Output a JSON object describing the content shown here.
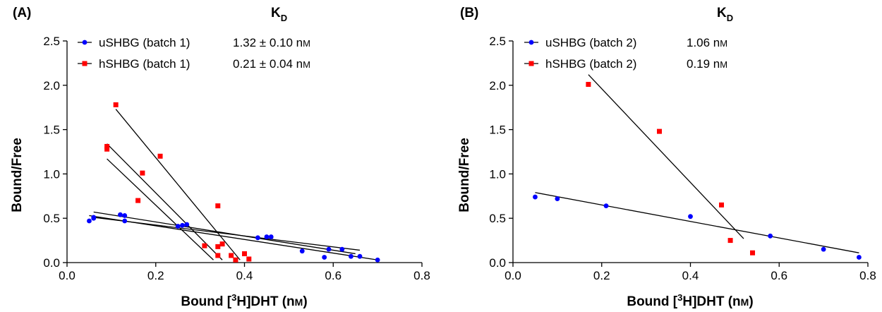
{
  "chart_data": [
    {
      "type": "scatter",
      "panel_label": "(A)",
      "xlabel": {
        "pre": "Bound [",
        "sup": "3",
        "post": "H]DHT (n",
        "unit_sc": "M",
        "end": ")"
      },
      "ylabel": "Bound/Free",
      "xlim": [
        0.0,
        0.8
      ],
      "ylim": [
        0.0,
        2.5
      ],
      "xticks": [
        "0.0",
        "0.2",
        "0.4",
        "0.6",
        "0.8"
      ],
      "yticks": [
        "0.0",
        "0.5",
        "1.0",
        "1.5",
        "2.0",
        "2.5"
      ],
      "grid": false,
      "legend_position": "top-left",
      "legend_header": {
        "main": "K",
        "sub": "D"
      },
      "series": [
        {
          "name": "uSHBG (batch 1)",
          "kd": "1.32 ± 0.10 n",
          "kd_unit": "M",
          "color": "#0000ff",
          "marker": "circle",
          "points": [
            [
              0.05,
              0.47
            ],
            [
              0.06,
              0.5
            ],
            [
              0.06,
              0.51
            ],
            [
              0.12,
              0.54
            ],
            [
              0.13,
              0.53
            ],
            [
              0.13,
              0.47
            ],
            [
              0.25,
              0.41
            ],
            [
              0.26,
              0.42
            ],
            [
              0.27,
              0.43
            ],
            [
              0.43,
              0.28
            ],
            [
              0.45,
              0.29
            ],
            [
              0.46,
              0.29
            ],
            [
              0.53,
              0.13
            ],
            [
              0.58,
              0.06
            ],
            [
              0.59,
              0.15
            ],
            [
              0.62,
              0.15
            ],
            [
              0.64,
              0.07
            ],
            [
              0.66,
              0.07
            ],
            [
              0.7,
              0.03
            ]
          ],
          "fit_lines": [
            [
              [
                0.05,
                0.53
              ],
              [
                0.7,
                0.03
              ]
            ],
            [
              [
                0.06,
                0.57
              ],
              [
                0.65,
                0.1
              ]
            ],
            [
              [
                0.06,
                0.51
              ],
              [
                0.66,
                0.14
              ]
            ]
          ]
        },
        {
          "name": "hSHBG (batch 1)",
          "kd": "0.21 ± 0.04 n",
          "kd_unit": "M",
          "color": "#ff0000",
          "marker": "square",
          "points": [
            [
              0.09,
              1.31
            ],
            [
              0.09,
              1.28
            ],
            [
              0.11,
              1.78
            ],
            [
              0.16,
              0.7
            ],
            [
              0.17,
              1.01
            ],
            [
              0.21,
              1.2
            ],
            [
              0.31,
              0.19
            ],
            [
              0.34,
              0.64
            ],
            [
              0.34,
              0.08
            ],
            [
              0.34,
              0.18
            ],
            [
              0.35,
              0.21
            ],
            [
              0.37,
              0.08
            ],
            [
              0.38,
              0.03
            ],
            [
              0.4,
              0.1
            ],
            [
              0.41,
              0.04
            ]
          ],
          "fit_lines": [
            [
              [
                0.11,
                1.73
              ],
              [
                0.39,
                0.03
              ]
            ],
            [
              [
                0.09,
                1.34
              ],
              [
                0.35,
                0.03
              ]
            ],
            [
              [
                0.09,
                1.17
              ],
              [
                0.33,
                0.03
              ]
            ]
          ]
        }
      ]
    },
    {
      "type": "scatter",
      "panel_label": "(B)",
      "xlabel": {
        "pre": "Bound [",
        "sup": "3",
        "post": "H]DHT (n",
        "unit_sc": "M",
        "end": ")"
      },
      "ylabel": "Bound/Free",
      "xlim": [
        0.0,
        0.8
      ],
      "ylim": [
        0.0,
        2.5
      ],
      "xticks": [
        "0.0",
        "0.2",
        "0.4",
        "0.6",
        "0.8"
      ],
      "yticks": [
        "0.0",
        "0.5",
        "1.0",
        "1.5",
        "2.0",
        "2.5"
      ],
      "grid": false,
      "legend_position": "top-left",
      "legend_header": {
        "main": "K",
        "sub": "D"
      },
      "series": [
        {
          "name": "uSHBG (batch 2)",
          "kd": "1.06 n",
          "kd_unit": "M",
          "color": "#0000ff",
          "marker": "circle",
          "points": [
            [
              0.05,
              0.74
            ],
            [
              0.1,
              0.72
            ],
            [
              0.21,
              0.64
            ],
            [
              0.4,
              0.52
            ],
            [
              0.58,
              0.3
            ],
            [
              0.7,
              0.15
            ],
            [
              0.78,
              0.06
            ]
          ],
          "fit_lines": [
            [
              [
                0.05,
                0.79
              ],
              [
                0.78,
                0.11
              ]
            ]
          ]
        },
        {
          "name": "hSHBG (batch 2)",
          "kd": "0.19 n",
          "kd_unit": "M",
          "color": "#ff0000",
          "marker": "square",
          "points": [
            [
              0.17,
              2.01
            ],
            [
              0.33,
              1.48
            ],
            [
              0.47,
              0.65
            ],
            [
              0.49,
              0.25
            ],
            [
              0.54,
              0.11
            ]
          ],
          "fit_lines": [
            [
              [
                0.17,
                2.12
              ],
              [
                0.52,
                0.27
              ]
            ]
          ]
        }
      ]
    }
  ]
}
